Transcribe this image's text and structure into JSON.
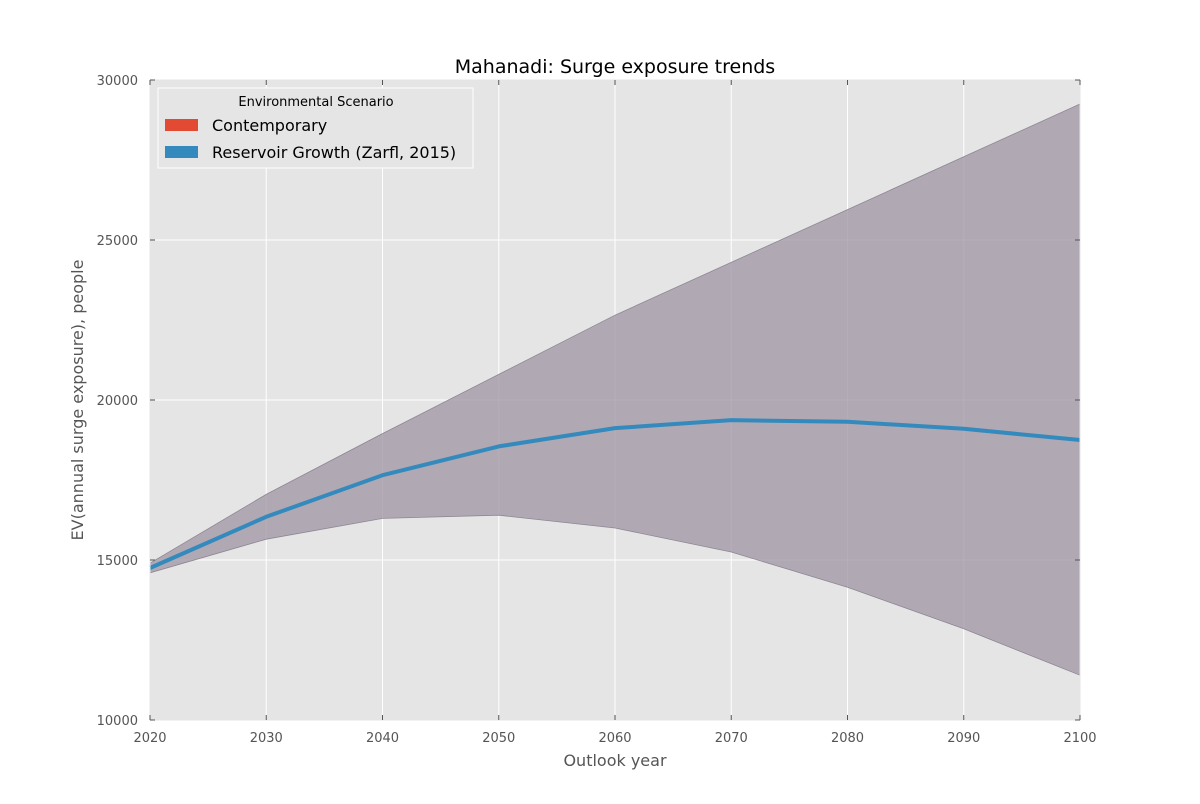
{
  "chart_data": {
    "type": "line",
    "title": "Mahanadi: Surge exposure trends",
    "xlabel": "Outlook year",
    "ylabel": "EV(annual surge exposure), people",
    "xlim": [
      2020,
      2100
    ],
    "ylim": [
      10000,
      30000
    ],
    "x_ticks": [
      "2020",
      "2030",
      "2040",
      "2050",
      "2060",
      "2070",
      "2080",
      "2090",
      "2100"
    ],
    "y_ticks": [
      "10000",
      "15000",
      "20000",
      "25000",
      "30000"
    ],
    "grid": true,
    "background_color": "#e5e5e5",
    "grid_color": "#ffffff",
    "legend": {
      "title": "Environmental Scenario",
      "placement": "top-left",
      "entries": [
        {
          "label": "Contemporary",
          "color": "#e24a33"
        },
        {
          "label": "Reservoir Growth (Zarfl, 2015)",
          "color": "#348abd"
        }
      ]
    },
    "x": [
      2020,
      2030,
      2040,
      2050,
      2060,
      2070,
      2080,
      2090,
      2100
    ],
    "series": [
      {
        "color": "#348abd",
        "values": [
          14750,
          16350,
          17650,
          18550,
          19120,
          19370,
          19320,
          19100,
          18750
        ],
        "band_upper": [
          14900,
          17050,
          18950,
          20800,
          22650,
          24300,
          25950,
          27600,
          29250
        ],
        "band_lower": [
          14600,
          15650,
          16300,
          16400,
          16000,
          15250,
          14150,
          12850,
          11400
        ],
        "band_color": "#a39aa8"
      }
    ]
  }
}
